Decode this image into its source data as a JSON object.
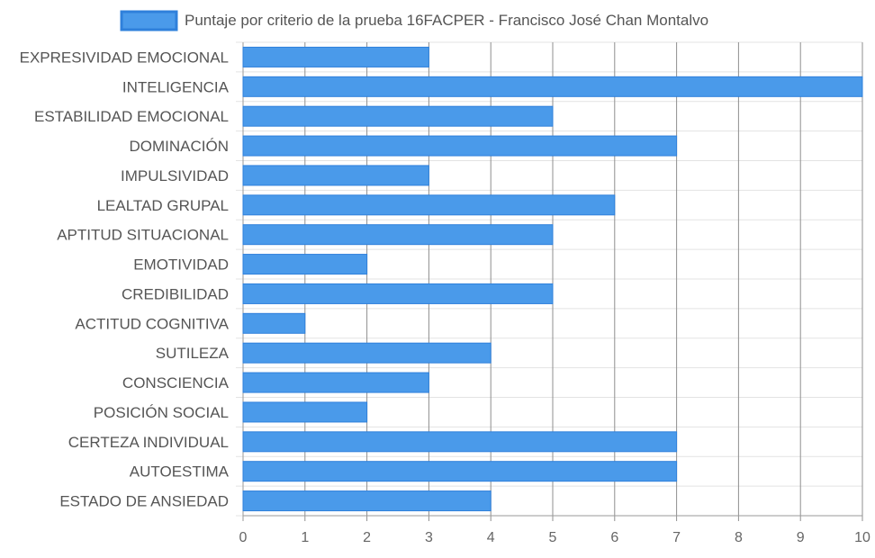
{
  "chart_data": {
    "type": "bar",
    "orientation": "horizontal",
    "categories": [
      "EXPRESIVIDAD EMOCIONAL",
      "INTELIGENCIA",
      "ESTABILIDAD EMOCIONAL",
      "DOMINACIÓN",
      "IMPULSIVIDAD",
      "LEALTAD GRUPAL",
      "APTITUD SITUACIONAL",
      "EMOTIVIDAD",
      "CREDIBILIDAD",
      "ACTITUD COGNITIVA",
      "SUTILEZA",
      "CONSCIENCIA",
      "POSICIÓN SOCIAL",
      "CERTEZA INDIVIDUAL",
      "AUTOESTIMA",
      "ESTADO DE ANSIEDAD"
    ],
    "series": [
      {
        "name": "Puntaje por criterio de la prueba 16FACPER - Francisco José Chan Montalvo",
        "values": [
          3,
          10,
          5,
          7,
          3,
          6,
          5,
          2,
          5,
          1,
          4,
          3,
          2,
          7,
          7,
          4
        ],
        "color": "#4a9aea",
        "border_color": "#2f80db"
      }
    ],
    "xlim": [
      0,
      10
    ],
    "xticks": [
      "0",
      "1",
      "2",
      "3",
      "4",
      "5",
      "6",
      "7",
      "8",
      "9",
      "10"
    ],
    "grid": true,
    "legend_position": "top"
  }
}
